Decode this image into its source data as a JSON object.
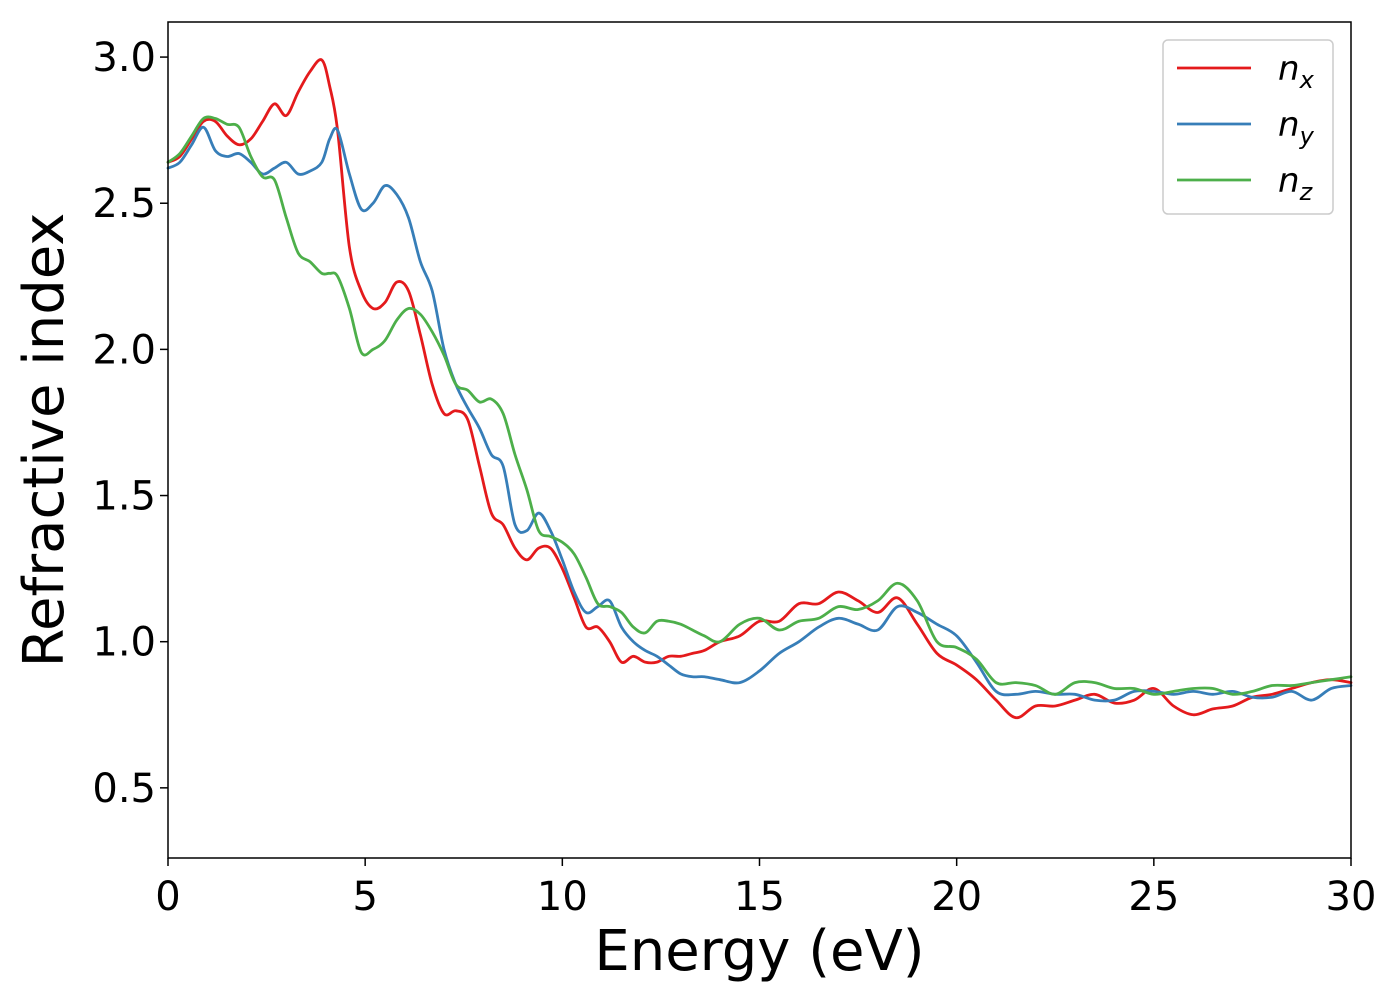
{
  "chart_data": {
    "type": "line",
    "xlabel": "Energy (eV)",
    "ylabel": "Refractive index",
    "xlim": [
      0,
      30
    ],
    "ylim": [
      0.26,
      3.12
    ],
    "xticks": [
      0,
      5,
      10,
      15,
      20,
      25,
      30
    ],
    "xtick_labels": [
      "0",
      "5",
      "10",
      "15",
      "20",
      "25",
      "30"
    ],
    "yticks": [
      0.5,
      1.0,
      1.5,
      2.0,
      2.5,
      3.0
    ],
    "ytick_labels": [
      "0.5",
      "1.0",
      "1.5",
      "2.0",
      "2.5",
      "3.0"
    ],
    "grid": false,
    "legend_position": "top-right",
    "series": [
      {
        "name": "n",
        "subscript": "x",
        "color": "#e41a1c",
        "x": [
          0,
          0.3,
          0.6,
          0.9,
          1.2,
          1.5,
          1.8,
          2.1,
          2.4,
          2.7,
          3.0,
          3.3,
          3.6,
          3.9,
          4.1,
          4.3,
          4.6,
          4.9,
          5.2,
          5.5,
          5.8,
          6.1,
          6.4,
          6.7,
          7.0,
          7.3,
          7.6,
          7.9,
          8.2,
          8.5,
          8.8,
          9.1,
          9.4,
          9.7,
          10.0,
          10.3,
          10.6,
          10.9,
          11.2,
          11.5,
          11.8,
          12.1,
          12.4,
          12.7,
          13.0,
          13.3,
          13.6,
          14.0,
          14.5,
          15.0,
          15.5,
          16.0,
          16.5,
          17.0,
          17.5,
          18.0,
          18.5,
          19.0,
          19.5,
          20.0,
          20.5,
          21.0,
          21.5,
          22.0,
          22.5,
          23.0,
          23.5,
          24.0,
          24.5,
          25.0,
          25.5,
          26.0,
          26.5,
          27.0,
          27.5,
          28.0,
          28.5,
          29.0,
          29.5,
          30.0
        ],
        "y": [
          2.64,
          2.66,
          2.72,
          2.78,
          2.78,
          2.73,
          2.7,
          2.72,
          2.78,
          2.84,
          2.8,
          2.88,
          2.95,
          2.99,
          2.9,
          2.75,
          2.35,
          2.2,
          2.14,
          2.16,
          2.23,
          2.2,
          2.05,
          1.88,
          1.78,
          1.79,
          1.76,
          1.6,
          1.44,
          1.4,
          1.32,
          1.28,
          1.32,
          1.32,
          1.25,
          1.15,
          1.05,
          1.05,
          1.0,
          0.93,
          0.95,
          0.93,
          0.93,
          0.95,
          0.95,
          0.96,
          0.97,
          1.0,
          1.02,
          1.07,
          1.07,
          1.13,
          1.13,
          1.17,
          1.14,
          1.1,
          1.15,
          1.06,
          0.96,
          0.92,
          0.87,
          0.8,
          0.74,
          0.78,
          0.78,
          0.8,
          0.82,
          0.79,
          0.8,
          0.84,
          0.78,
          0.75,
          0.77,
          0.78,
          0.81,
          0.82,
          0.84,
          0.86,
          0.87,
          0.86
        ]
      },
      {
        "name": "n",
        "subscript": "y",
        "color": "#377eb8",
        "x": [
          0,
          0.3,
          0.6,
          0.9,
          1.2,
          1.5,
          1.8,
          2.1,
          2.4,
          2.7,
          3.0,
          3.3,
          3.6,
          3.9,
          4.1,
          4.3,
          4.6,
          4.9,
          5.2,
          5.5,
          5.8,
          6.1,
          6.4,
          6.7,
          7.0,
          7.3,
          7.6,
          7.9,
          8.2,
          8.5,
          8.8,
          9.1,
          9.4,
          9.7,
          10.0,
          10.3,
          10.6,
          10.9,
          11.2,
          11.5,
          11.8,
          12.1,
          12.4,
          12.7,
          13.0,
          13.3,
          13.6,
          14.0,
          14.5,
          15.0,
          15.5,
          16.0,
          16.5,
          17.0,
          17.5,
          18.0,
          18.5,
          19.0,
          19.5,
          20.0,
          20.5,
          21.0,
          21.5,
          22.0,
          22.5,
          23.0,
          23.5,
          24.0,
          24.5,
          25.0,
          25.5,
          26.0,
          26.5,
          27.0,
          27.5,
          28.0,
          28.5,
          29.0,
          29.5,
          30.0
        ],
        "y": [
          2.62,
          2.64,
          2.7,
          2.76,
          2.68,
          2.66,
          2.67,
          2.64,
          2.6,
          2.62,
          2.64,
          2.6,
          2.61,
          2.64,
          2.72,
          2.75,
          2.6,
          2.48,
          2.5,
          2.56,
          2.53,
          2.45,
          2.3,
          2.2,
          2.0,
          1.88,
          1.8,
          1.73,
          1.64,
          1.6,
          1.4,
          1.38,
          1.44,
          1.38,
          1.28,
          1.17,
          1.1,
          1.12,
          1.14,
          1.05,
          1.0,
          0.97,
          0.95,
          0.92,
          0.89,
          0.88,
          0.88,
          0.87,
          0.86,
          0.9,
          0.96,
          1.0,
          1.05,
          1.08,
          1.06,
          1.04,
          1.12,
          1.1,
          1.06,
          1.02,
          0.93,
          0.83,
          0.82,
          0.83,
          0.82,
          0.82,
          0.8,
          0.8,
          0.83,
          0.83,
          0.82,
          0.83,
          0.82,
          0.83,
          0.81,
          0.81,
          0.83,
          0.8,
          0.84,
          0.85
        ]
      },
      {
        "name": "n",
        "subscript": "z",
        "color": "#4daf4a",
        "x": [
          0,
          0.3,
          0.6,
          0.9,
          1.2,
          1.5,
          1.8,
          2.1,
          2.4,
          2.7,
          3.0,
          3.3,
          3.6,
          3.9,
          4.1,
          4.3,
          4.6,
          4.9,
          5.2,
          5.5,
          5.8,
          6.1,
          6.4,
          6.7,
          7.0,
          7.3,
          7.6,
          7.9,
          8.2,
          8.5,
          8.8,
          9.1,
          9.4,
          9.7,
          10.0,
          10.3,
          10.6,
          10.9,
          11.2,
          11.5,
          11.8,
          12.1,
          12.4,
          12.7,
          13.0,
          13.3,
          13.6,
          14.0,
          14.5,
          15.0,
          15.5,
          16.0,
          16.5,
          17.0,
          17.5,
          18.0,
          18.5,
          19.0,
          19.5,
          20.0,
          20.5,
          21.0,
          21.5,
          22.0,
          22.5,
          23.0,
          23.5,
          24.0,
          24.5,
          25.0,
          25.5,
          26.0,
          26.5,
          27.0,
          27.5,
          28.0,
          28.5,
          29.0,
          29.5,
          30.0
        ],
        "y": [
          2.64,
          2.67,
          2.73,
          2.79,
          2.79,
          2.77,
          2.76,
          2.66,
          2.59,
          2.58,
          2.45,
          2.33,
          2.3,
          2.26,
          2.26,
          2.25,
          2.14,
          1.99,
          2.0,
          2.03,
          2.1,
          2.14,
          2.12,
          2.06,
          1.98,
          1.88,
          1.86,
          1.82,
          1.83,
          1.78,
          1.64,
          1.52,
          1.38,
          1.36,
          1.34,
          1.3,
          1.22,
          1.13,
          1.12,
          1.1,
          1.05,
          1.03,
          1.07,
          1.07,
          1.06,
          1.04,
          1.02,
          1.0,
          1.06,
          1.08,
          1.04,
          1.07,
          1.08,
          1.12,
          1.11,
          1.14,
          1.2,
          1.14,
          1.0,
          0.98,
          0.94,
          0.86,
          0.86,
          0.85,
          0.82,
          0.86,
          0.86,
          0.84,
          0.84,
          0.82,
          0.83,
          0.84,
          0.84,
          0.82,
          0.83,
          0.85,
          0.85,
          0.86,
          0.87,
          0.88
        ]
      }
    ]
  }
}
